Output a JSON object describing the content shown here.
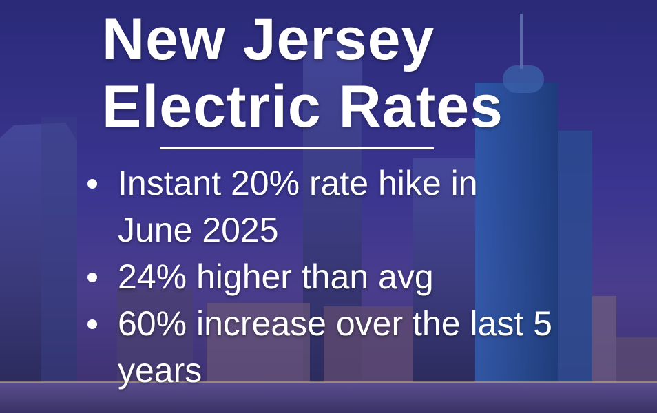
{
  "graphic": {
    "title_lines": [
      "New Jersey",
      "Electric Rates"
    ],
    "bullets": [
      "Instant 20% rate hike in June 2025",
      "24% higher than avg",
      "60% increase over the last 5 years"
    ]
  }
}
